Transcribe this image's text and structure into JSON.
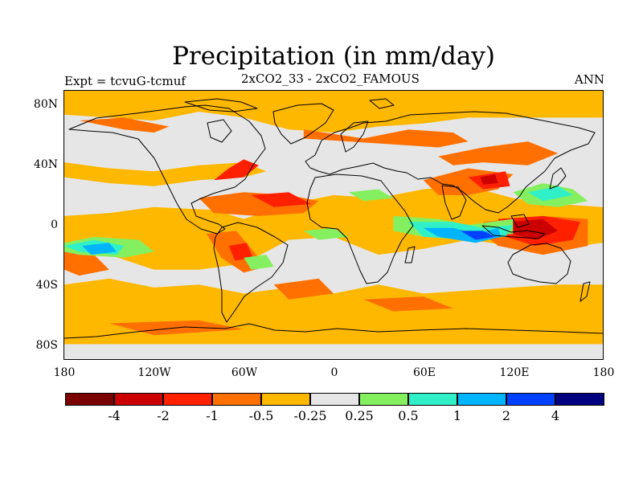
{
  "header": {
    "title": "Precipitation (in mm/day)",
    "left": "Expt = tcvuG-tcmuf",
    "center": "2xCO2_33 - 2xCO2_FAMOUS",
    "right": "ANN"
  },
  "axes": {
    "lat_labels": [
      "80N",
      "40N",
      "0",
      "40S",
      "80S"
    ],
    "lon_labels": [
      "180",
      "120W",
      "60W",
      "0",
      "60E",
      "120E",
      "180"
    ]
  },
  "legend": {
    "boundaries": [
      "-4",
      "-2",
      "-1",
      "-0.5",
      "-0.25",
      "0.25",
      "0.5",
      "1",
      "2",
      "4"
    ],
    "colors": [
      "#7a0000",
      "#cc0000",
      "#ff2000",
      "#ff7000",
      "#ffb800",
      "#e6e6e6",
      "#84f060",
      "#30f0c8",
      "#00b4ff",
      "#0040ff",
      "#000080"
    ]
  },
  "chart_data": {
    "type": "heatmap",
    "title": "Precipitation (in mm/day)",
    "subtitle": "2xCO2_33 - 2xCO2_FAMOUS",
    "season": "ANN",
    "experiment": "Expt = tcvuG-tcmuf",
    "projection": "cylindrical equidistant",
    "xlim": [
      -180,
      180
    ],
    "ylim": [
      -90,
      90
    ],
    "xticks": [
      -180,
      -120,
      -60,
      0,
      60,
      120,
      180
    ],
    "yticks": [
      80,
      40,
      0,
      -40,
      -80
    ],
    "levels": [
      -4,
      -2,
      -1,
      -0.5,
      -0.25,
      0.25,
      0.5,
      1,
      2,
      4
    ],
    "colors": [
      "#7a0000",
      "#cc0000",
      "#ff2000",
      "#ff7000",
      "#ffb800",
      "#e6e6e6",
      "#84f060",
      "#30f0c8",
      "#00b4ff",
      "#0040ff",
      "#000080"
    ],
    "regions": [
      {
        "level": 4,
        "poly": [
          [
            -180,
            90
          ],
          [
            180,
            90
          ],
          [
            180,
            72
          ],
          [
            90,
            72
          ],
          [
            60,
            68
          ],
          [
            30,
            66
          ],
          [
            0,
            62
          ],
          [
            -30,
            64
          ],
          [
            -60,
            72
          ],
          [
            -90,
            76
          ],
          [
            -120,
            70
          ],
          [
            -150,
            72
          ],
          [
            -180,
            74
          ]
        ]
      },
      {
        "level": 4,
        "poly": [
          [
            -180,
            6
          ],
          [
            -150,
            8
          ],
          [
            -120,
            12
          ],
          [
            -80,
            10
          ],
          [
            -60,
            4
          ],
          [
            -30,
            14
          ],
          [
            0,
            20
          ],
          [
            30,
            18
          ],
          [
            60,
            24
          ],
          [
            90,
            26
          ],
          [
            120,
            18
          ],
          [
            150,
            14
          ],
          [
            180,
            12
          ],
          [
            180,
            -12
          ],
          [
            150,
            -16
          ],
          [
            120,
            -14
          ],
          [
            90,
            -10
          ],
          [
            60,
            -16
          ],
          [
            30,
            -20
          ],
          [
            0,
            -8
          ],
          [
            -30,
            -10
          ],
          [
            -60,
            -26
          ],
          [
            -90,
            -30
          ],
          [
            -120,
            -30
          ],
          [
            -150,
            -20
          ],
          [
            -180,
            -14
          ]
        ]
      },
      {
        "level": 4,
        "poly": [
          [
            -180,
            -40
          ],
          [
            -150,
            -36
          ],
          [
            -120,
            -42
          ],
          [
            -90,
            -40
          ],
          [
            -60,
            -46
          ],
          [
            -30,
            -42
          ],
          [
            0,
            -46
          ],
          [
            30,
            -40
          ],
          [
            60,
            -46
          ],
          [
            90,
            -44
          ],
          [
            120,
            -42
          ],
          [
            150,
            -40
          ],
          [
            180,
            -40
          ],
          [
            180,
            -80
          ],
          [
            -180,
            -80
          ]
        ]
      },
      {
        "level": 4,
        "poly": [
          [
            -180,
            42
          ],
          [
            -150,
            38
          ],
          [
            -120,
            36
          ],
          [
            -90,
            40
          ],
          [
            -60,
            42
          ],
          [
            -45,
            36
          ],
          [
            -60,
            32
          ],
          [
            -90,
            30
          ],
          [
            -120,
            26
          ],
          [
            -150,
            28
          ],
          [
            -180,
            32
          ]
        ]
      },
      {
        "level": 3,
        "poly": [
          [
            -20,
            64
          ],
          [
            20,
            58
          ],
          [
            50,
            64
          ],
          [
            80,
            62
          ],
          [
            90,
            56
          ],
          [
            70,
            52
          ],
          [
            40,
            54
          ],
          [
            10,
            56
          ],
          [
            -20,
            58
          ]
        ]
      },
      {
        "level": 3,
        "poly": [
          [
            70,
            46
          ],
          [
            100,
            52
          ],
          [
            130,
            56
          ],
          [
            150,
            48
          ],
          [
            130,
            40
          ],
          [
            100,
            42
          ],
          [
            80,
            40
          ]
        ]
      },
      {
        "level": 3,
        "poly": [
          [
            -170,
            70
          ],
          [
            -140,
            64
          ],
          [
            -120,
            62
          ],
          [
            -110,
            66
          ],
          [
            -140,
            72
          ]
        ]
      },
      {
        "level": 3,
        "poly": [
          [
            -90,
            18
          ],
          [
            -60,
            22
          ],
          [
            -30,
            20
          ],
          [
            -10,
            16
          ],
          [
            -20,
            8
          ],
          [
            -50,
            6
          ],
          [
            -80,
            8
          ]
        ]
      },
      {
        "level": 3,
        "poly": [
          [
            60,
            30
          ],
          [
            90,
            38
          ],
          [
            120,
            34
          ],
          [
            110,
            24
          ],
          [
            90,
            20
          ],
          [
            70,
            20
          ]
        ]
      },
      {
        "level": 3,
        "poly": [
          [
            100,
            2
          ],
          [
            140,
            6
          ],
          [
            170,
            4
          ],
          [
            170,
            -14
          ],
          [
            140,
            -20
          ],
          [
            110,
            -14
          ],
          [
            100,
            -6
          ]
        ]
      },
      {
        "level": 3,
        "poly": [
          [
            -85,
            -6
          ],
          [
            -65,
            -4
          ],
          [
            -55,
            -16
          ],
          [
            -45,
            -28
          ],
          [
            -60,
            -32
          ],
          [
            -75,
            -22
          ]
        ]
      },
      {
        "level": 3,
        "poly": [
          [
            -180,
            -18
          ],
          [
            -160,
            -20
          ],
          [
            -150,
            -30
          ],
          [
            -170,
            -34
          ],
          [
            -180,
            -30
          ]
        ]
      },
      {
        "level": 3,
        "poly": [
          [
            -40,
            -40
          ],
          [
            -10,
            -36
          ],
          [
            0,
            -46
          ],
          [
            -30,
            -50
          ]
        ]
      },
      {
        "level": 3,
        "poly": [
          [
            -150,
            -66
          ],
          [
            -90,
            -64
          ],
          [
            -60,
            -70
          ],
          [
            -120,
            -74
          ]
        ]
      },
      {
        "level": 3,
        "poly": [
          [
            20,
            -50
          ],
          [
            60,
            -48
          ],
          [
            80,
            -56
          ],
          [
            40,
            -58
          ]
        ]
      },
      {
        "level": 2,
        "poly": [
          [
            -80,
            30
          ],
          [
            -70,
            38
          ],
          [
            -60,
            44
          ],
          [
            -50,
            40
          ],
          [
            -60,
            32
          ]
        ]
      },
      {
        "level": 2,
        "poly": [
          [
            -55,
            20
          ],
          [
            -30,
            22
          ],
          [
            -15,
            14
          ],
          [
            -40,
            12
          ]
        ]
      },
      {
        "level": 2,
        "poly": [
          [
            90,
            32
          ],
          [
            115,
            36
          ],
          [
            118,
            26
          ],
          [
            100,
            24
          ]
        ]
      },
      {
        "level": 2,
        "poly": [
          [
            110,
            4
          ],
          [
            140,
            6
          ],
          [
            165,
            2
          ],
          [
            160,
            -10
          ],
          [
            135,
            -14
          ],
          [
            115,
            -8
          ]
        ]
      },
      {
        "level": 2,
        "poly": [
          [
            -70,
            -14
          ],
          [
            -58,
            -12
          ],
          [
            -54,
            -22
          ],
          [
            -66,
            -24
          ]
        ]
      },
      {
        "level": 1,
        "poly": [
          [
            118,
            2
          ],
          [
            140,
            4
          ],
          [
            150,
            -4
          ],
          [
            135,
            -10
          ],
          [
            120,
            -6
          ]
        ]
      },
      {
        "level": 1,
        "poly": [
          [
            98,
            32
          ],
          [
            108,
            34
          ],
          [
            110,
            28
          ],
          [
            100,
            27
          ]
        ]
      },
      {
        "level": 6,
        "poly": [
          [
            -180,
            -12
          ],
          [
            -160,
            -8
          ],
          [
            -130,
            -10
          ],
          [
            -120,
            -18
          ],
          [
            -140,
            -22
          ],
          [
            -170,
            -20
          ],
          [
            -180,
            -18
          ]
        ]
      },
      {
        "level": 6,
        "poly": [
          [
            -60,
            -22
          ],
          [
            -45,
            -20
          ],
          [
            -40,
            -28
          ],
          [
            -55,
            -30
          ]
        ]
      },
      {
        "level": 6,
        "poly": [
          [
            10,
            22
          ],
          [
            30,
            24
          ],
          [
            40,
            18
          ],
          [
            20,
            16
          ]
        ]
      },
      {
        "level": 6,
        "poly": [
          [
            40,
            6
          ],
          [
            70,
            4
          ],
          [
            90,
            0
          ],
          [
            120,
            4
          ],
          [
            120,
            -6
          ],
          [
            90,
            -8
          ],
          [
            60,
            -8
          ],
          [
            40,
            -4
          ]
        ]
      },
      {
        "level": 6,
        "poly": [
          [
            120,
            22
          ],
          [
            140,
            28
          ],
          [
            160,
            24
          ],
          [
            170,
            16
          ],
          [
            150,
            12
          ],
          [
            130,
            14
          ]
        ]
      },
      {
        "level": 6,
        "poly": [
          [
            -20,
            -4
          ],
          [
            0,
            -2
          ],
          [
            10,
            -8
          ],
          [
            -10,
            -10
          ]
        ]
      },
      {
        "level": 7,
        "poly": [
          [
            -180,
            -14
          ],
          [
            -160,
            -10
          ],
          [
            -140,
            -14
          ],
          [
            -145,
            -20
          ],
          [
            -170,
            -18
          ]
        ]
      },
      {
        "level": 7,
        "poly": [
          [
            50,
            2
          ],
          [
            80,
            2
          ],
          [
            100,
            -2
          ],
          [
            120,
            0
          ],
          [
            115,
            -8
          ],
          [
            90,
            -10
          ],
          [
            60,
            -8
          ]
        ]
      },
      {
        "level": 7,
        "poly": [
          [
            130,
            22
          ],
          [
            150,
            26
          ],
          [
            160,
            20
          ],
          [
            140,
            16
          ]
        ]
      },
      {
        "level": 8,
        "poly": [
          [
            -168,
            -14
          ],
          [
            -150,
            -12
          ],
          [
            -145,
            -18
          ],
          [
            -162,
            -20
          ]
        ]
      },
      {
        "level": 8,
        "poly": [
          [
            60,
            -2
          ],
          [
            80,
            -2
          ],
          [
            95,
            -6
          ],
          [
            110,
            -2
          ],
          [
            112,
            -8
          ],
          [
            95,
            -12
          ],
          [
            70,
            -8
          ]
        ]
      },
      {
        "level": 9,
        "poly": [
          [
            85,
            -4
          ],
          [
            100,
            -4
          ],
          [
            108,
            -8
          ],
          [
            95,
            -10
          ]
        ]
      }
    ]
  }
}
